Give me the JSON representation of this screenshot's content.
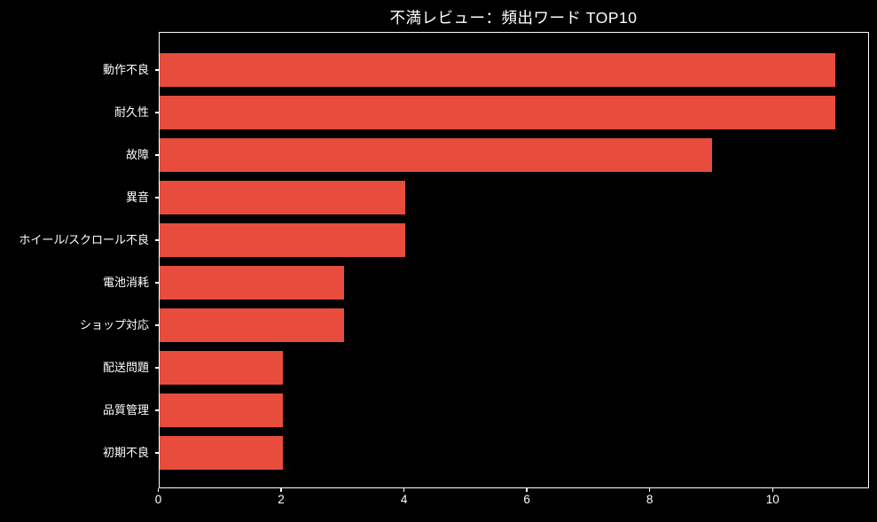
{
  "chart_data": {
    "type": "bar",
    "orientation": "horizontal",
    "title": "不満レビュー：頻出ワード TOP10",
    "categories": [
      "動作不良",
      "耐久性",
      "故障",
      "異音",
      "ホイール/スクロール不良",
      "電池消耗",
      "ショップ対応",
      "配送問題",
      "品質管理",
      "初期不良"
    ],
    "values": [
      11,
      11,
      9,
      4,
      4,
      3,
      3,
      2,
      2,
      2
    ],
    "x_ticks": [
      0,
      2,
      4,
      6,
      8,
      10
    ],
    "xlim": [
      0,
      11.57
    ],
    "xlabel": "",
    "ylabel": "",
    "grid": false,
    "legend": null,
    "colors": {
      "bar": "#e74c3c",
      "background": "#000000",
      "text": "#ffffff",
      "spine": "#ffffff"
    }
  }
}
